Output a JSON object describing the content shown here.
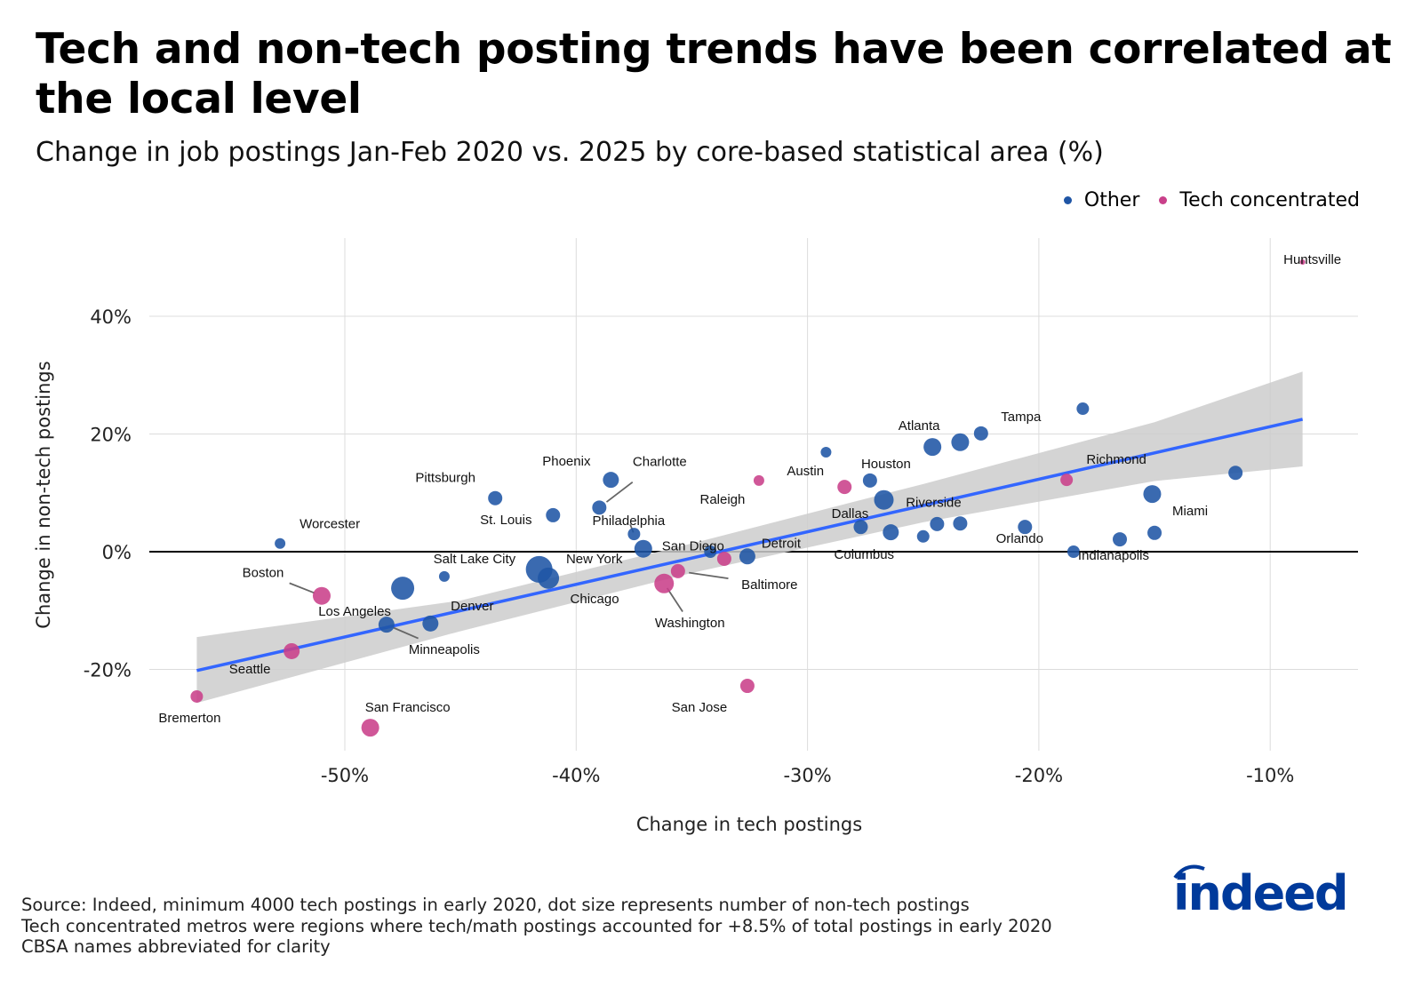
{
  "title": "Tech and non-tech posting trends have been correlated at the local level",
  "subtitle": "Change in job postings Jan-Feb 2020 vs. 2025 by core-based statistical area (%)",
  "legend": [
    {
      "label": "Other",
      "color": "#1f55a5"
    },
    {
      "label": "Tech concentrated",
      "color": "#c9408a"
    }
  ],
  "source_lines": [
    "Source: Indeed, minimum 4000 tech postings in early 2020, dot size represents number of non-tech postings",
    "Tech concentrated metros were regions where tech/math postings accounted for +8.5% of total postings in early 2020",
    "CBSA names abbreviated for clarity"
  ],
  "logo_text": "indeed",
  "chart_data": {
    "type": "scatter",
    "xlabel": "Change in tech postings",
    "ylabel": "Change in non-tech postings",
    "xlim": [
      -58,
      -6
    ],
    "ylim": [
      -34,
      53
    ],
    "x_ticks": [
      {
        "value": -50,
        "label": "-50%"
      },
      {
        "value": -40,
        "label": "-40%"
      },
      {
        "value": -30,
        "label": "-30%"
      },
      {
        "value": -20,
        "label": "-20%"
      },
      {
        "value": -10,
        "label": "-10%"
      }
    ],
    "y_ticks": [
      {
        "value": 40,
        "label": "40%"
      },
      {
        "value": 20,
        "label": "20%"
      },
      {
        "value": 0,
        "label": "0%"
      },
      {
        "value": -20,
        "label": "-20%"
      }
    ],
    "grid": true,
    "legend_position": "top-right",
    "colors": {
      "Other": "#1f55a5",
      "Tech concentrated": "#c9408a",
      "fit": "#3366ff",
      "band": "#cccccc"
    },
    "trend_line": {
      "x": [
        -56.4,
        -8.6
      ],
      "y": [
        -20.2,
        22.5
      ]
    },
    "confidence_band": {
      "x": [
        -56.4,
        -45,
        -35,
        -25,
        -15,
        -8.6
      ],
      "lower": [
        -25.7,
        -13.5,
        -3.6,
        5.0,
        12.0,
        14.5
      ],
      "upper": [
        -14.5,
        -8.3,
        1.4,
        11.5,
        22.0,
        30.6
      ]
    },
    "points": [
      {
        "name": "Worcester",
        "x": -52.8,
        "y": 1.4,
        "group": "Other",
        "size": 6
      },
      {
        "name": "Boston",
        "x": -51.0,
        "y": -7.5,
        "group": "Tech concentrated",
        "size": 10
      },
      {
        "name": "Bremerton",
        "x": -56.4,
        "y": -24.6,
        "group": "Tech concentrated",
        "size": 7
      },
      {
        "name": "Seattle",
        "x": -52.3,
        "y": -16.9,
        "group": "Tech concentrated",
        "size": 9
      },
      {
        "name": "San Francisco",
        "x": -48.9,
        "y": -29.9,
        "group": "Tech concentrated",
        "size": 10
      },
      {
        "name": "Los Angeles",
        "x": -47.5,
        "y": -6.2,
        "group": "Other",
        "size": 13
      },
      {
        "name": "Minneapolis",
        "x": -48.2,
        "y": -12.4,
        "group": "Other",
        "size": 9
      },
      {
        "name": "Denver",
        "x": -46.3,
        "y": -12.2,
        "group": "Other",
        "size": 9
      },
      {
        "name": "Salt Lake City",
        "x": -45.7,
        "y": -4.2,
        "group": "Other",
        "size": 6
      },
      {
        "name": "Pittsburgh",
        "x": -43.5,
        "y": 9.1,
        "group": "Other",
        "size": 8
      },
      {
        "name": "St. Louis",
        "x": -41.0,
        "y": 6.2,
        "group": "Other",
        "size": 8
      },
      {
        "name": "New York",
        "x": -41.6,
        "y": -3.0,
        "group": "Other",
        "size": 15
      },
      {
        "name": "Chicago",
        "x": -41.2,
        "y": -4.5,
        "group": "Other",
        "size": 12
      },
      {
        "name": "Phoenix",
        "x": -38.5,
        "y": 12.2,
        "group": "Other",
        "size": 9
      },
      {
        "name": "Charlotte",
        "x": -39.0,
        "y": 7.5,
        "group": "Other",
        "size": 8
      },
      {
        "name": "Philadelphia",
        "x": -37.5,
        "y": 3.0,
        "group": "Other",
        "size": 7
      },
      {
        "name": "San Diego",
        "x": -37.1,
        "y": 0.5,
        "group": "Other",
        "size": 10
      },
      {
        "name": "Washington",
        "x": -36.2,
        "y": -5.4,
        "group": "Tech concentrated",
        "size": 11
      },
      {
        "name": "Baltimore",
        "x": -35.6,
        "y": -3.3,
        "group": "Tech concentrated",
        "size": 8
      },
      {
        "name": "",
        "x": -34.2,
        "y": 0.0,
        "group": "Other",
        "size": 7
      },
      {
        "name": "",
        "x": -33.6,
        "y": -1.2,
        "group": "Tech concentrated",
        "size": 8
      },
      {
        "name": "Detroit",
        "x": -32.6,
        "y": -0.8,
        "group": "Other",
        "size": 9
      },
      {
        "name": "San Jose",
        "x": -32.6,
        "y": -22.8,
        "group": "Tech concentrated",
        "size": 8
      },
      {
        "name": "Raleigh",
        "x": -32.1,
        "y": 12.1,
        "group": "Tech concentrated",
        "size": 6
      },
      {
        "name": "",
        "x": -29.2,
        "y": 16.9,
        "group": "Other",
        "size": 6
      },
      {
        "name": "Austin",
        "x": -28.4,
        "y": 11.0,
        "group": "Tech concentrated",
        "size": 8
      },
      {
        "name": "Houston",
        "x": -27.3,
        "y": 12.1,
        "group": "Other",
        "size": 8
      },
      {
        "name": "Riverside",
        "x": -26.7,
        "y": 8.8,
        "group": "Other",
        "size": 11
      },
      {
        "name": "Dallas",
        "x": -27.7,
        "y": 4.2,
        "group": "Other",
        "size": 8
      },
      {
        "name": "Columbus",
        "x": -26.4,
        "y": 3.3,
        "group": "Other",
        "size": 9
      },
      {
        "name": "",
        "x": -25.0,
        "y": 2.6,
        "group": "Other",
        "size": 7
      },
      {
        "name": "",
        "x": -24.4,
        "y": 4.7,
        "group": "Other",
        "size": 8
      },
      {
        "name": "",
        "x": -23.4,
        "y": 4.8,
        "group": "Other",
        "size": 8
      },
      {
        "name": "Atlanta",
        "x": -24.6,
        "y": 17.8,
        "group": "Other",
        "size": 10
      },
      {
        "name": "",
        "x": -23.4,
        "y": 18.6,
        "group": "Other",
        "size": 10
      },
      {
        "name": "Tampa",
        "x": -22.5,
        "y": 20.1,
        "group": "Other",
        "size": 8
      },
      {
        "name": "",
        "x": -18.1,
        "y": 24.3,
        "group": "Other",
        "size": 7
      },
      {
        "name": "Orlando",
        "x": -20.6,
        "y": 4.2,
        "group": "Other",
        "size": 8
      },
      {
        "name": "Indianapolis",
        "x": -18.5,
        "y": 0.0,
        "group": "Other",
        "size": 7
      },
      {
        "name": "",
        "x": -16.5,
        "y": 2.1,
        "group": "Other",
        "size": 8
      },
      {
        "name": "Miami",
        "x": -15.0,
        "y": 3.2,
        "group": "Other",
        "size": 8
      },
      {
        "name": "",
        "x": -15.1,
        "y": 9.8,
        "group": "Other",
        "size": 10
      },
      {
        "name": "Richmond",
        "x": -18.8,
        "y": 12.2,
        "group": "Tech concentrated",
        "size": 7
      },
      {
        "name": "",
        "x": -11.5,
        "y": 13.4,
        "group": "Other",
        "size": 8
      },
      {
        "name": "Huntsville",
        "x": -8.6,
        "y": 49.2,
        "group": "Tech concentrated",
        "size": 3
      }
    ]
  }
}
